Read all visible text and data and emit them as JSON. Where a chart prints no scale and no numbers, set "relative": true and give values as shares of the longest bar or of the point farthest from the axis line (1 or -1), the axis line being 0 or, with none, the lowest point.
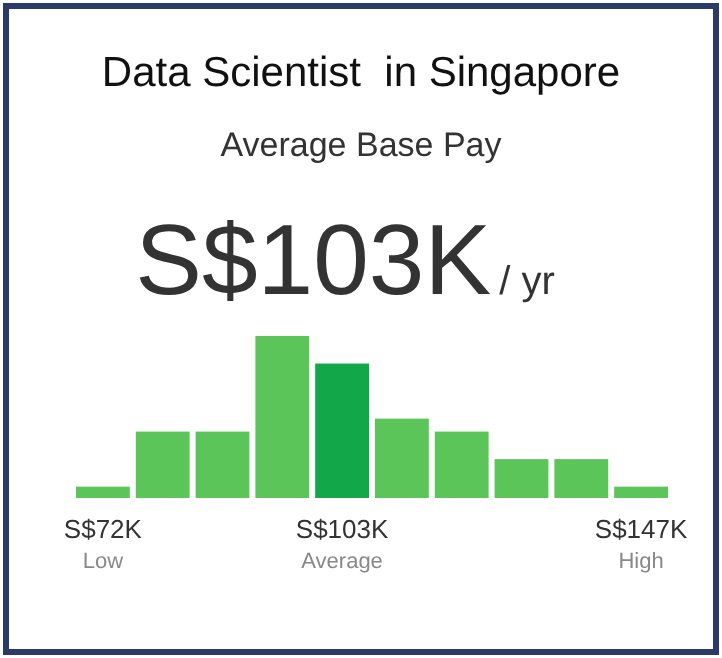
{
  "chart_data": {
    "type": "bar",
    "title": "Data Scientist  in Singapore",
    "subtitle": "Average Base Pay",
    "annotations": [
      "S$103K",
      "/ yr"
    ],
    "relative": true,
    "categories": [
      "S$72K\nLow",
      null,
      null,
      null,
      "S$103K\nAverage",
      null,
      null,
      null,
      null,
      "S$147K\nHigh"
    ],
    "values": [
      0.07,
      0.41,
      0.41,
      1,
      0.83,
      0.49,
      0.41,
      0.24,
      0.24,
      0.07
    ],
    "colors": [
      "#5cc55a",
      "#5cc55a",
      "#5cc55a",
      "#5cc55a",
      "#12a84a",
      "#5cc55a",
      "#5cc55a",
      "#5cc55a",
      "#5cc55a",
      "#5cc55a"
    ]
  }
}
